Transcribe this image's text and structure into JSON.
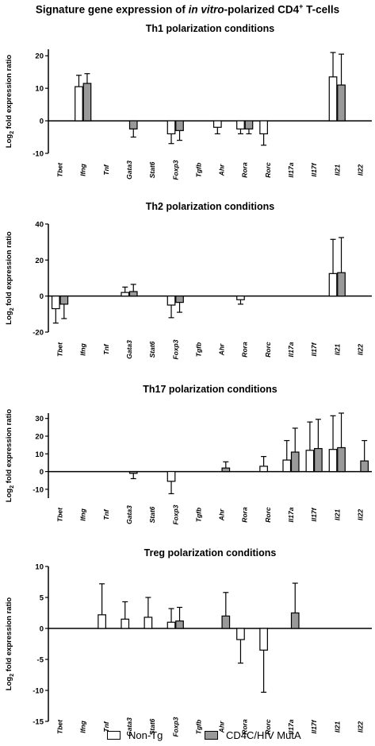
{
  "figure_title": {
    "before": "Signature gene expression of ",
    "italic": "in vitro",
    "after": "-polarized CD4",
    "sup": "+",
    "tail": " T-cells"
  },
  "legend": {
    "items": [
      {
        "label": "Non-Tg",
        "color": "#ffffff"
      },
      {
        "label": "CD4C/HIV MutA",
        "color": "#999999"
      }
    ]
  },
  "chart_data": [
    {
      "type": "bar",
      "title": "Th1 polarization conditions",
      "ylabel_base": "Log",
      "ylabel_sub": "2",
      "ylabel_rest": " fold expression ratio",
      "ylim": [
        -10,
        22
      ],
      "yticks": [
        -10,
        0,
        10,
        20
      ],
      "categories": [
        "Tbet",
        "Ifng",
        "Tnf",
        "Gata3",
        "Stat6",
        "Foxp3",
        "Tgfb",
        "Ahr",
        "Rora",
        "Rorc",
        "Il17a",
        "Il17f",
        "Il21",
        "Il22"
      ],
      "series": [
        {
          "name": "Non-Tg",
          "values": [
            null,
            10.5,
            null,
            null,
            null,
            -4.0,
            null,
            -2.0,
            -2.5,
            -4.0,
            null,
            null,
            13.5,
            null
          ],
          "errors": [
            null,
            3.5,
            null,
            null,
            null,
            3.0,
            null,
            2.0,
            1.5,
            3.5,
            null,
            null,
            7.5,
            null
          ]
        },
        {
          "name": "CD4C/HIV MutA",
          "values": [
            null,
            11.5,
            null,
            -2.5,
            null,
            -3.0,
            null,
            null,
            -2.5,
            null,
            null,
            null,
            11.0,
            null
          ],
          "errors": [
            null,
            3.0,
            null,
            2.5,
            null,
            3.0,
            null,
            null,
            1.5,
            null,
            null,
            null,
            9.5,
            null
          ]
        }
      ]
    },
    {
      "type": "bar",
      "title": "Th2 polarization conditions",
      "ylabel_base": "Log",
      "ylabel_sub": "2",
      "ylabel_rest": " fold expression ratio",
      "ylim": [
        -20,
        40
      ],
      "yticks": [
        -20,
        0,
        20,
        40
      ],
      "categories": [
        "Tbet",
        "Ifng",
        "Tnf",
        "Gata3",
        "Stat6",
        "Foxp3",
        "Tgfb",
        "Ahr",
        "Rora",
        "Rorc",
        "Il17a",
        "Il17f",
        "Il21",
        "Il22"
      ],
      "series": [
        {
          "name": "Non-Tg",
          "values": [
            -7.0,
            null,
            null,
            2.0,
            null,
            -5.0,
            null,
            null,
            -2.0,
            null,
            null,
            null,
            12.5,
            null
          ],
          "errors": [
            8.0,
            null,
            null,
            3.0,
            null,
            7.0,
            null,
            null,
            2.5,
            null,
            null,
            null,
            19.0,
            null
          ]
        },
        {
          "name": "CD4C/HIV MutA",
          "values": [
            -4.5,
            null,
            null,
            2.5,
            null,
            -3.5,
            null,
            null,
            null,
            null,
            null,
            null,
            13.0,
            null
          ],
          "errors": [
            8.0,
            null,
            null,
            4.0,
            null,
            5.5,
            null,
            null,
            null,
            null,
            null,
            null,
            19.5,
            null
          ]
        }
      ]
    },
    {
      "type": "bar",
      "title": "Th17 polarization conditions",
      "ylabel_base": "Log",
      "ylabel_sub": "2",
      "ylabel_rest": " fold expression ratio",
      "ylim": [
        -15,
        33
      ],
      "yticks": [
        -10,
        0,
        10,
        20,
        30
      ],
      "categories": [
        "Tbet",
        "Ifng",
        "Tnf",
        "Gata3",
        "Stat6",
        "Foxp3",
        "Tgfb",
        "Ahr",
        "Rora",
        "Rorc",
        "Il17a",
        "Il17f",
        "Il21",
        "Il22"
      ],
      "series": [
        {
          "name": "Non-Tg",
          "values": [
            null,
            null,
            null,
            null,
            null,
            -5.5,
            null,
            null,
            null,
            3.0,
            6.5,
            12.0,
            12.5,
            null
          ],
          "errors": [
            null,
            null,
            null,
            null,
            null,
            7.0,
            null,
            null,
            null,
            5.5,
            11.0,
            16.0,
            19.0,
            null
          ]
        },
        {
          "name": "CD4C/HIV MutA",
          "values": [
            null,
            null,
            null,
            -1.0,
            null,
            null,
            null,
            2.0,
            null,
            null,
            11.0,
            13.0,
            13.5,
            6.0
          ],
          "errors": [
            null,
            null,
            null,
            3.0,
            null,
            null,
            null,
            3.5,
            null,
            null,
            13.5,
            16.5,
            19.5,
            11.5
          ]
        }
      ]
    },
    {
      "type": "bar",
      "title": "Treg polarization conditions",
      "ylabel_base": "Log",
      "ylabel_sub": "2",
      "ylabel_rest": " fold expression ratio",
      "ylim": [
        -15,
        10
      ],
      "yticks": [
        -15,
        -10,
        -5,
        0,
        5,
        10
      ],
      "categories": [
        "Tbet",
        "Ifng",
        "Tnf",
        "Gata3",
        "Stat6",
        "Foxp3",
        "Tgfb",
        "Ahr",
        "Rora",
        "Rorc",
        "Il17a",
        "Il17f",
        "Il21",
        "Il22"
      ],
      "series": [
        {
          "name": "Non-Tg",
          "values": [
            null,
            null,
            2.2,
            1.5,
            1.8,
            1.0,
            null,
            null,
            -1.8,
            -3.5,
            null,
            null,
            null,
            null
          ],
          "errors": [
            null,
            null,
            5.0,
            2.8,
            3.2,
            2.2,
            null,
            null,
            3.8,
            6.8,
            null,
            null,
            null,
            null
          ]
        },
        {
          "name": "CD4C/HIV MutA",
          "values": [
            null,
            null,
            null,
            null,
            null,
            1.2,
            null,
            2.0,
            null,
            null,
            2.5,
            null,
            null,
            null
          ],
          "errors": [
            null,
            null,
            null,
            null,
            null,
            2.2,
            null,
            3.8,
            null,
            null,
            4.8,
            null,
            null,
            null
          ]
        }
      ]
    }
  ]
}
